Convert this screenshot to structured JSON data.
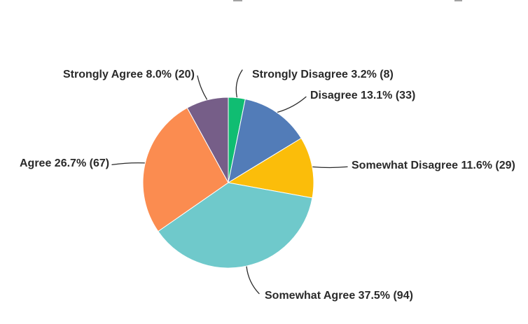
{
  "figure": {
    "background": "#ffffff",
    "text_color": "#2a2a2a",
    "leader_line_color": "#2a2a2a",
    "slice_border_color": "#ffffff"
  },
  "chart_data": {
    "type": "pie",
    "direction": "clockwise",
    "start_angle_deg": 0,
    "legend": "none",
    "label_style": "outside-with-leader-lines",
    "slices": [
      {
        "label": "Strongly Disagree",
        "percent": 3.2,
        "count": 8,
        "color": "#10BD72",
        "display": "Strongly Disagree 3.2% (8)"
      },
      {
        "label": "Disagree",
        "percent": 13.1,
        "count": 33,
        "color": "#527CB8",
        "display": "Disagree 13.1% (33)"
      },
      {
        "label": "Somewhat Disagree",
        "percent": 11.6,
        "count": 29,
        "color": "#FBBD0A",
        "display": "Somewhat Disagree 11.6% (29)"
      },
      {
        "label": "Somewhat Agree",
        "percent": 37.5,
        "count": 94,
        "color": "#6FC9CB",
        "display": "Somewhat Agree 37.5% (94)"
      },
      {
        "label": "Agree",
        "percent": 26.7,
        "count": 67,
        "color": "#FB8C50",
        "display": "Agree 26.7% (67)"
      },
      {
        "label": "Strongly Agree",
        "percent": 8.0,
        "count": 20,
        "color": "#765E88",
        "display": "Strongly Agree 8.0% (20)"
      }
    ]
  }
}
